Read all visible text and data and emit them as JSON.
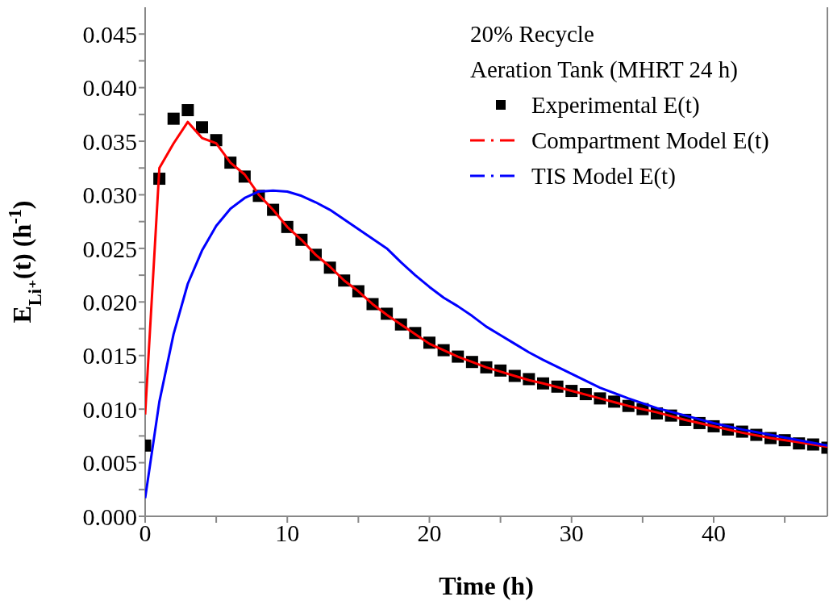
{
  "chart_data": {
    "type": "line",
    "xlabel": "Time (h)",
    "ylabel": "E$_{Li⁺}$(t) (h$^{-1}$)",
    "annotations": [
      "20% Recycle",
      "Aeration Tank (MHRT 24 h)"
    ],
    "legend": "top right",
    "xlim": [
      0,
      48
    ],
    "xticks": [
      0,
      {
        "value": 5,
        "label": null
      },
      10,
      {
        "value": 15,
        "label": null
      },
      20,
      {
        "value": 25,
        "label": null
      },
      30,
      {
        "value": 35,
        "label": null
      },
      40,
      {
        "value": 45,
        "label": null
      }
    ],
    "ylim": [
      0,
      0.0475
    ],
    "yticks": [
      {
        "value": 0,
        "label": "0.000"
      },
      {
        "value": 0.0025,
        "label": null
      },
      {
        "value": 0.005,
        "label": "0.005"
      },
      {
        "value": 0.0075,
        "label": null
      },
      {
        "value": 0.01,
        "label": "0.010"
      },
      {
        "value": 0.0125,
        "label": null
      },
      {
        "value": 0.015,
        "label": "0.015"
      },
      {
        "value": 0.0175,
        "label": null
      },
      {
        "value": 0.02,
        "label": "0.020"
      },
      {
        "value": 0.0225,
        "label": null
      },
      {
        "value": 0.025,
        "label": "0.025"
      },
      {
        "value": 0.0275,
        "label": null
      },
      {
        "value": 0.03,
        "label": "0.030"
      },
      {
        "value": 0.0325,
        "label": null
      },
      {
        "value": 0.035,
        "label": "0.035"
      },
      {
        "value": 0.0375,
        "label": null
      },
      {
        "value": 0.04,
        "label": "0.040"
      },
      {
        "value": 0.0425,
        "label": null
      },
      {
        "value": 0.045,
        "label": "0.045"
      }
    ],
    "series": [
      {
        "name": "Experimental E(t)",
        "type": "scatter",
        "marker": "square",
        "color": "#000000",
        "x": [
          0,
          1,
          2,
          3,
          4,
          5,
          6,
          7,
          8,
          9,
          10,
          11,
          12,
          13,
          14,
          15,
          16,
          17,
          18,
          19,
          20,
          21,
          22,
          23,
          24,
          25,
          26,
          27,
          28,
          29,
          30,
          31,
          32,
          33,
          34,
          35,
          36,
          37,
          38,
          39,
          40,
          41,
          42,
          43,
          44,
          45,
          46,
          47,
          48
        ],
        "values": [
          0.0066,
          0.0315,
          0.0371,
          0.0379,
          0.0363,
          0.0351,
          0.033,
          0.0317,
          0.0299,
          0.0286,
          0.027,
          0.0258,
          0.0244,
          0.0232,
          0.022,
          0.021,
          0.0198,
          0.0189,
          0.0179,
          0.0171,
          0.0162,
          0.0155,
          0.0149,
          0.0144,
          0.0139,
          0.0136,
          0.0131,
          0.0128,
          0.0124,
          0.0121,
          0.0117,
          0.0114,
          0.011,
          0.0107,
          0.0103,
          0.01,
          0.0096,
          0.0094,
          0.009,
          0.0087,
          0.0084,
          0.0081,
          0.0079,
          0.0076,
          0.0073,
          0.0071,
          0.0068,
          0.0067,
          0.0064
        ]
      },
      {
        "name": "Compartment Model E(t)",
        "color": "#ff0000",
        "x": [
          0,
          1,
          2,
          3,
          4,
          5,
          6,
          7,
          8,
          9,
          10,
          11,
          12,
          13,
          14,
          15,
          16,
          17,
          18,
          19,
          20,
          21,
          22,
          23,
          24,
          25,
          26,
          27,
          28,
          30,
          32,
          34,
          36,
          38,
          40,
          42,
          44,
          46,
          48
        ],
        "values": [
          0.0095,
          0.0325,
          0.0348,
          0.0368,
          0.0353,
          0.0348,
          0.033,
          0.0319,
          0.03,
          0.0286,
          0.027,
          0.0258,
          0.0244,
          0.0233,
          0.022,
          0.021,
          0.0198,
          0.0188,
          0.0179,
          0.017,
          0.0161,
          0.0155,
          0.0149,
          0.0144,
          0.0139,
          0.0135,
          0.0131,
          0.0127,
          0.0124,
          0.0117,
          0.011,
          0.0103,
          0.0097,
          0.009,
          0.0084,
          0.0078,
          0.0073,
          0.0069,
          0.0065
        ]
      },
      {
        "name": "TIS Model E(t)",
        "color": "#0000ff",
        "x": [
          0,
          1,
          2,
          3,
          4,
          5,
          6,
          7,
          8,
          9,
          10,
          11,
          12,
          13,
          14,
          15,
          16,
          17,
          18,
          19,
          20,
          21,
          22,
          23,
          24,
          25,
          26,
          27,
          28,
          30,
          32,
          34,
          36,
          38,
          40,
          42,
          44,
          46,
          48
        ],
        "values": [
          0.0017,
          0.0107,
          0.017,
          0.0217,
          0.0248,
          0.0271,
          0.0287,
          0.0297,
          0.0303,
          0.0304,
          0.0303,
          0.0299,
          0.0293,
          0.0286,
          0.0277,
          0.0268,
          0.0259,
          0.025,
          0.0237,
          0.0225,
          0.0214,
          0.0204,
          0.0196,
          0.0187,
          0.0177,
          0.0169,
          0.0161,
          0.0153,
          0.0146,
          0.0133,
          0.012,
          0.011,
          0.0101,
          0.0094,
          0.0087,
          0.0081,
          0.0076,
          0.0071,
          0.0066
        ]
      }
    ]
  }
}
